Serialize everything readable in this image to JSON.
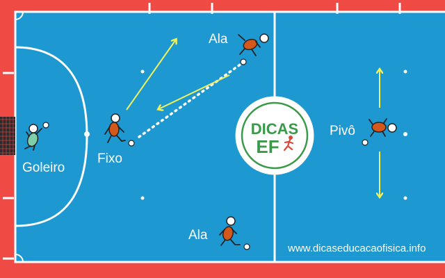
{
  "players": {
    "goleiro": {
      "label": "Goleiro"
    },
    "fixo": {
      "label": "Fixo"
    },
    "ala_top": {
      "label": "Ala"
    },
    "ala_bottom": {
      "label": "Ala"
    },
    "pivo": {
      "label": "Pivô"
    }
  },
  "logo": {
    "line1": "DICAS",
    "line2": "EF"
  },
  "website": "www.dicaseducacaofisica.info",
  "colors": {
    "court": "#1e98d0",
    "border": "#f04a45",
    "lines": "#ffffff",
    "arrow": "#f0f25a",
    "player_body": "#d4581c",
    "goalkeeper_body": "#7fd0a8",
    "logo_green": "#3a9a4a"
  }
}
